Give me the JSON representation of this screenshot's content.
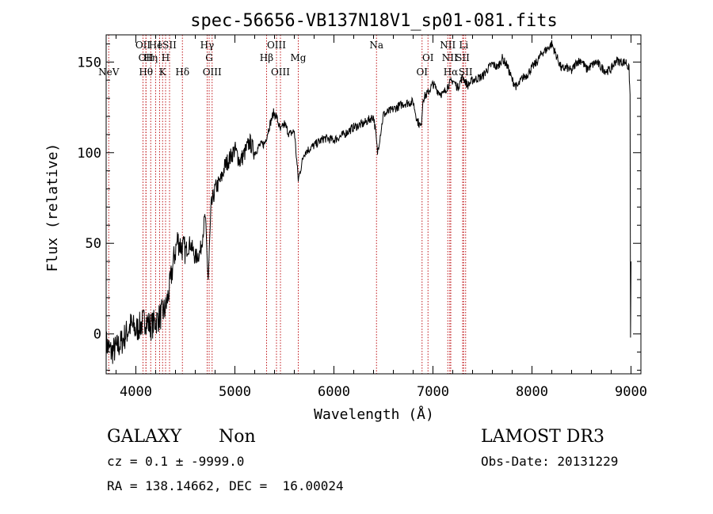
{
  "chart_data": {
    "type": "line",
    "title": "spec-56656-VB137N18V1_sp01-081.fits",
    "xlabel": "Wavelength (Å)",
    "ylabel": "Flux (relative)",
    "xlim": [
      3700,
      9100
    ],
    "ylim": [
      -22,
      165
    ],
    "xticks": [
      4000,
      5000,
      6000,
      7000,
      8000,
      9000
    ],
    "yticks": [
      0,
      50,
      100,
      150
    ],
    "tick_labels_x": [
      "4000",
      "5000",
      "6000",
      "7000",
      "8000",
      "9000"
    ],
    "tick_labels_y": [
      "0",
      "50",
      "100",
      "150"
    ],
    "series": [
      {
        "name": "spectrum",
        "x": [
          3700,
          3750,
          3800,
          3850,
          3900,
          3950,
          4000,
          4050,
          4100,
          4150,
          4200,
          4250,
          4300,
          4340,
          4380,
          4420,
          4460,
          4500,
          4550,
          4600,
          4650,
          4700,
          4730,
          4760,
          4800,
          4860,
          4900,
          4950,
          5000,
          5050,
          5100,
          5150,
          5200,
          5250,
          5300,
          5350,
          5390,
          5420,
          5460,
          5500,
          5550,
          5600,
          5640,
          5700,
          5800,
          5900,
          6000,
          6100,
          6200,
          6300,
          6400,
          6420,
          6440,
          6500,
          6600,
          6700,
          6800,
          6840,
          6880,
          6900,
          6950,
          7000,
          7050,
          7100,
          7150,
          7200,
          7250,
          7300,
          7350,
          7400,
          7450,
          7500,
          7550,
          7600,
          7650,
          7700,
          7750,
          7800,
          7850,
          7900,
          7950,
          8000,
          8050,
          8100,
          8150,
          8200,
          8250,
          8300,
          8350,
          8400,
          8450,
          8500,
          8550,
          8600,
          8650,
          8700,
          8750,
          8800,
          8850,
          8900,
          8950,
          8980,
          8990,
          8995,
          9000
        ],
        "y": [
          -5,
          -10,
          -8,
          -5,
          0,
          5,
          2,
          5,
          8,
          4,
          7,
          10,
          14,
          25,
          40,
          52,
          48,
          46,
          50,
          42,
          45,
          65,
          30,
          70,
          80,
          85,
          93,
          97,
          102,
          95,
          100,
          106,
          100,
          104,
          105,
          115,
          122,
          120,
          112,
          116,
          110,
          112,
          85,
          100,
          104,
          108,
          107,
          110,
          114,
          116,
          120,
          112,
          100,
          121,
          124,
          127,
          128,
          118,
          114,
          130,
          133,
          138,
          134,
          132,
          137,
          140,
          136,
          142,
          137,
          140,
          141,
          142,
          146,
          149,
          147,
          152,
          148,
          140,
          136,
          141,
          143,
          147,
          150,
          155,
          157,
          160,
          153,
          146,
          147,
          145,
          150,
          151,
          146,
          148,
          150,
          147,
          145,
          146,
          151,
          150,
          150,
          146,
          132,
          -2,
          40
        ]
      }
    ],
    "lines": [
      {
        "wavelength": 3726,
        "label": "NeV",
        "row": 3
      },
      {
        "wavelength": 4072,
        "label": "OII",
        "row": 1
      },
      {
        "wavelength": 4102,
        "label": "OII",
        "row": 2
      },
      {
        "wavelength": 4102,
        "label": "Hθ",
        "row": 3
      },
      {
        "wavelength": 4150,
        "label": "Hη",
        "row": 2
      },
      {
        "wavelength": 4200,
        "label": "He",
        "row": 1
      },
      {
        "wavelength": 4240,
        "label": "I",
        "row": 1
      },
      {
        "wavelength": 4270,
        "label": "K",
        "row": 3
      },
      {
        "wavelength": 4300,
        "label": "H",
        "row": 2
      },
      {
        "wavelength": 4340,
        "label": "SII",
        "row": 1
      },
      {
        "wavelength": 4470,
        "label": "Hδ",
        "row": 3
      },
      {
        "wavelength": 4720,
        "label": "Hγ",
        "row": 1
      },
      {
        "wavelength": 4740,
        "label": "G",
        "row": 2
      },
      {
        "wavelength": 4770,
        "label": "OIII",
        "row": 3
      },
      {
        "wavelength": 5320,
        "label": "Hβ",
        "row": 2
      },
      {
        "wavelength": 5420,
        "label": "OIII",
        "row": 1
      },
      {
        "wavelength": 5460,
        "label": "OIII",
        "row": 3
      },
      {
        "wavelength": 5640,
        "label": "Mg",
        "row": 2
      },
      {
        "wavelength": 6430,
        "label": "Na",
        "row": 1
      },
      {
        "wavelength": 6890,
        "label": "OI",
        "row": 3
      },
      {
        "wavelength": 6950,
        "label": "OI",
        "row": 2
      },
      {
        "wavelength": 7150,
        "label": "NII",
        "row": 1
      },
      {
        "wavelength": 7170,
        "label": "NII",
        "row": 2
      },
      {
        "wavelength": 7180,
        "label": "Hα",
        "row": 3
      },
      {
        "wavelength": 7300,
        "label": "SII",
        "row": 2
      },
      {
        "wavelength": 7310,
        "label": "Li",
        "row": 1
      },
      {
        "wavelength": 7330,
        "label": "SII",
        "row": 3
      }
    ]
  },
  "info": {
    "object_type": "GALAXY",
    "subclass": "Non",
    "survey": "LAMOST DR3",
    "redshift_line": "cz = 0.1 ± -9999.0",
    "obs_date": "Obs-Date: 20131229",
    "coords": "RA = 138.14662, DEC =  16.00024"
  }
}
